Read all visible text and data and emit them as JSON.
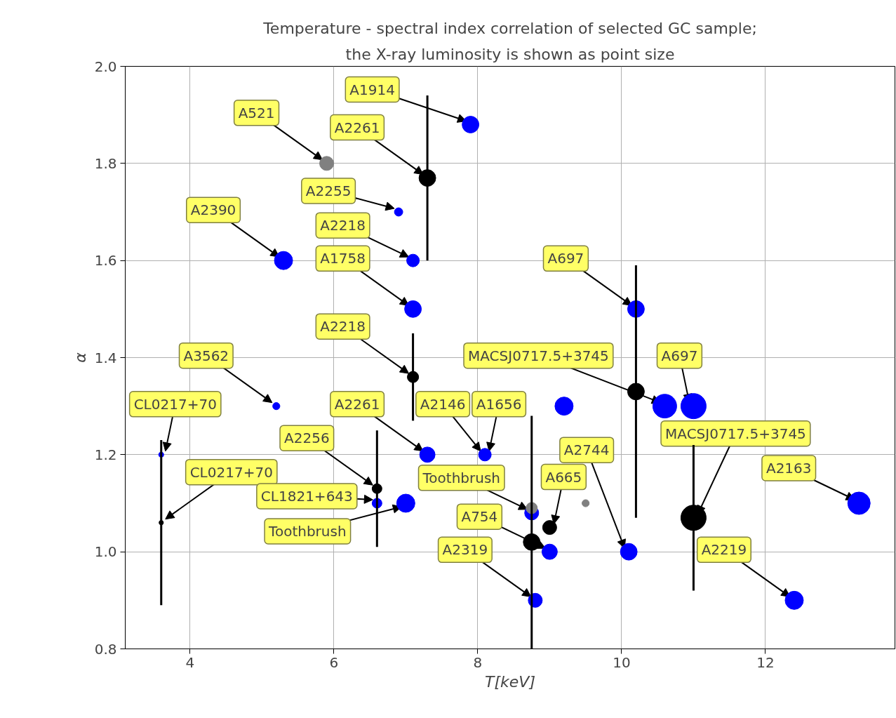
{
  "chart_data": {
    "type": "bubble",
    "title": "Temperature - spectral index correlation of selected GC sample;",
    "subtitle": "the X-ray luminosity is shown as point size",
    "xlabel": "T[keV]",
    "ylabel": "α",
    "xlim": [
      3.1,
      13.8
    ],
    "ylim": [
      0.8,
      2.0
    ],
    "xticks": [
      4,
      6,
      8,
      10,
      12
    ],
    "yticks": [
      {
        "value": 0.8,
        "label": "0.8"
      },
      {
        "value": 1.0,
        "label": "1.0"
      },
      {
        "value": 1.2,
        "label": "1.2"
      },
      {
        "value": 1.4,
        "label": "1.4"
      },
      {
        "value": 1.6,
        "label": "1.6"
      },
      {
        "value": 1.8,
        "label": "1.8"
      },
      {
        "value": 2.0,
        "label": "2.0"
      }
    ],
    "grid": true,
    "marker": "circle",
    "series": [
      {
        "color": "#0000ff",
        "x": [
          7.9,
          6.9,
          7.1,
          5.3,
          7.1,
          10.2,
          5.2,
          9.2,
          10.6,
          11.0,
          3.6,
          7.3,
          8.1,
          6.6,
          7.0,
          8.75,
          9.0,
          10.1,
          8.8,
          12.4,
          13.3
        ],
        "values": [
          1.88,
          1.7,
          1.6,
          1.6,
          1.5,
          1.5,
          1.3,
          1.3,
          1.3,
          1.3,
          1.2,
          1.2,
          1.2,
          1.1,
          1.1,
          1.08,
          1.0,
          1.0,
          0.9,
          0.9,
          1.1
        ],
        "sizes": [
          0.44,
          0.11,
          0.25,
          0.52,
          0.44,
          0.44,
          0.08,
          0.52,
          0.89,
          1,
          0.04,
          0.37,
          0.25,
          0.15,
          0.52,
          0.31,
          0.37,
          0.44,
          0.31,
          0.52,
          0.79
        ]
      },
      {
        "color": "#808080",
        "x": [
          5.9,
          9.5,
          8.75
        ],
        "values": [
          1.8,
          1.1,
          1.09
        ],
        "sizes": [
          0.31,
          0.08,
          0.2
        ]
      },
      {
        "color": "#000000",
        "x": [
          7.3,
          7.1,
          10.2,
          3.6,
          6.6,
          9.0,
          8.75,
          11.0
        ],
        "values": [
          1.77,
          1.36,
          1.33,
          1.06,
          1.13,
          1.05,
          1.02,
          1.07
        ],
        "sizes": [
          0.44,
          0.2,
          0.44,
          0.03,
          0.15,
          0.31,
          0.44,
          1
        ],
        "errors": [
          [
            1.6,
            1.94
          ],
          [
            1.27,
            1.45
          ],
          [
            1.07,
            1.59
          ],
          [
            0.89,
            1.23
          ],
          [
            1.01,
            1.25
          ],
          null,
          [
            0.8,
            1.28
          ],
          [
            0.92,
            1.22
          ]
        ]
      }
    ],
    "annotations": [
      {
        "text": "A1914",
        "x": 7.9,
        "y": 1.88
      },
      {
        "text": "A521",
        "x": 5.9,
        "y": 1.8
      },
      {
        "text": "A2261",
        "x": 7.3,
        "y": 1.77
      },
      {
        "text": "A2255",
        "x": 6.9,
        "y": 1.7
      },
      {
        "text": "A2390",
        "x": 5.3,
        "y": 1.6
      },
      {
        "text": "A2218",
        "x": 7.1,
        "y": 1.6
      },
      {
        "text": "A1758",
        "x": 7.1,
        "y": 1.5
      },
      {
        "text": "A697",
        "x": 10.2,
        "y": 1.5
      },
      {
        "text": "A2218",
        "x": 7.1,
        "y": 1.36
      },
      {
        "text": "A3562",
        "x": 5.2,
        "y": 1.3
      },
      {
        "text": "MACSJ0717.5+3745",
        "x": 10.6,
        "y": 1.3
      },
      {
        "text": "A697",
        "x": 11.0,
        "y": 1.3
      },
      {
        "text": "CL0217+70",
        "x": 3.6,
        "y": 1.2
      },
      {
        "text": "CL0217+70",
        "x": 3.6,
        "y": 1.06
      },
      {
        "text": "A2261",
        "x": 7.3,
        "y": 1.2
      },
      {
        "text": "A2146",
        "x": 8.1,
        "y": 1.2
      },
      {
        "text": "A1656",
        "x": 8.1,
        "y": 1.2
      },
      {
        "text": "A2256",
        "x": 6.6,
        "y": 1.13
      },
      {
        "text": "CL1821+643",
        "x": 6.6,
        "y": 1.1
      },
      {
        "text": "Toothbrush",
        "x": 7.0,
        "y": 1.1
      },
      {
        "text": "Toothbrush",
        "x": 8.75,
        "y": 1.08
      },
      {
        "text": "A754",
        "x": 9.0,
        "y": 1.0
      },
      {
        "text": "A665",
        "x": 9.0,
        "y": 1.05
      },
      {
        "text": "MACSJ0717.5+3745",
        "x": 11.0,
        "y": 1.07
      },
      {
        "text": "A2744",
        "x": 10.1,
        "y": 1.0
      },
      {
        "text": "A2319",
        "x": 8.8,
        "y": 0.9
      },
      {
        "text": "A2219",
        "x": 12.4,
        "y": 0.9
      },
      {
        "text": "A2163",
        "x": 13.3,
        "y": 1.1
      }
    ]
  }
}
